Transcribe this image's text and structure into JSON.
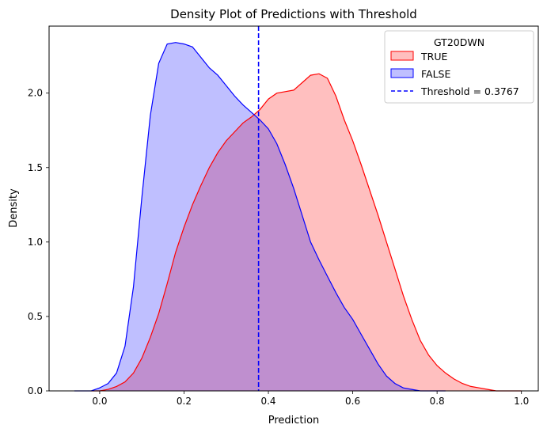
{
  "chart_data": {
    "type": "area",
    "title": "Density Plot of Predictions with Threshold",
    "xlabel": "Prediction",
    "ylabel": "Density",
    "xlim": [
      -0.12,
      1.04
    ],
    "ylim": [
      0,
      2.45
    ],
    "x_ticks": [
      0.0,
      0.2,
      0.4,
      0.6,
      0.8,
      1.0
    ],
    "x_tick_labels": [
      "0.0",
      "0.2",
      "0.4",
      "0.6",
      "0.8",
      "1.0"
    ],
    "y_ticks": [
      0.0,
      0.5,
      1.0,
      1.5,
      2.0
    ],
    "y_tick_labels": [
      "0.0",
      "0.5",
      "1.0",
      "1.5",
      "2.0"
    ],
    "grid": false,
    "legend": {
      "title": "GT20DWN",
      "placement": "top-right",
      "entries": [
        "TRUE",
        "FALSE",
        "Threshold = 0.3767"
      ]
    },
    "threshold": {
      "x": 0.3767,
      "label": "Threshold = 0.3767",
      "color": "#0000ff",
      "style": "dashed"
    },
    "series": [
      {
        "name": "TRUE",
        "color": "#ff0000",
        "fill": "#ffbfbf",
        "x": [
          -0.02,
          0.0,
          0.02,
          0.04,
          0.06,
          0.08,
          0.1,
          0.12,
          0.14,
          0.16,
          0.18,
          0.2,
          0.22,
          0.24,
          0.26,
          0.28,
          0.3,
          0.32,
          0.34,
          0.36,
          0.38,
          0.4,
          0.42,
          0.44,
          0.46,
          0.48,
          0.5,
          0.52,
          0.54,
          0.56,
          0.58,
          0.6,
          0.62,
          0.64,
          0.66,
          0.68,
          0.7,
          0.72,
          0.74,
          0.76,
          0.78,
          0.8,
          0.82,
          0.84,
          0.86,
          0.88,
          0.9,
          0.92,
          0.94,
          0.96,
          0.98,
          1.0
        ],
        "y": [
          0.0,
          0.0,
          0.01,
          0.03,
          0.06,
          0.12,
          0.22,
          0.36,
          0.52,
          0.72,
          0.93,
          1.1,
          1.25,
          1.38,
          1.5,
          1.6,
          1.68,
          1.74,
          1.8,
          1.84,
          1.89,
          1.96,
          2.0,
          2.01,
          2.02,
          2.07,
          2.12,
          2.13,
          2.1,
          1.98,
          1.82,
          1.68,
          1.52,
          1.35,
          1.18,
          1.0,
          0.82,
          0.64,
          0.48,
          0.34,
          0.24,
          0.17,
          0.12,
          0.08,
          0.05,
          0.03,
          0.02,
          0.01,
          0.0,
          0.0,
          0.0,
          0.0
        ]
      },
      {
        "name": "FALSE",
        "color": "#0000ff",
        "fill": "#bfbfff",
        "x": [
          -0.06,
          -0.04,
          -0.02,
          0.0,
          0.02,
          0.04,
          0.06,
          0.08,
          0.1,
          0.12,
          0.14,
          0.16,
          0.18,
          0.2,
          0.22,
          0.24,
          0.26,
          0.28,
          0.3,
          0.32,
          0.34,
          0.36,
          0.38,
          0.4,
          0.42,
          0.44,
          0.46,
          0.48,
          0.5,
          0.52,
          0.54,
          0.56,
          0.58,
          0.6,
          0.62,
          0.64,
          0.66,
          0.68,
          0.7,
          0.72,
          0.74,
          0.76,
          0.78,
          0.8,
          0.82
        ],
        "y": [
          0.0,
          0.0,
          0.0,
          0.02,
          0.05,
          0.12,
          0.3,
          0.7,
          1.3,
          1.85,
          2.2,
          2.33,
          2.34,
          2.33,
          2.31,
          2.24,
          2.17,
          2.12,
          2.05,
          1.98,
          1.92,
          1.87,
          1.82,
          1.76,
          1.66,
          1.52,
          1.36,
          1.18,
          1.0,
          0.88,
          0.77,
          0.66,
          0.56,
          0.48,
          0.38,
          0.28,
          0.18,
          0.1,
          0.05,
          0.02,
          0.01,
          0.0,
          0.0,
          0.0,
          0.0
        ]
      }
    ]
  }
}
